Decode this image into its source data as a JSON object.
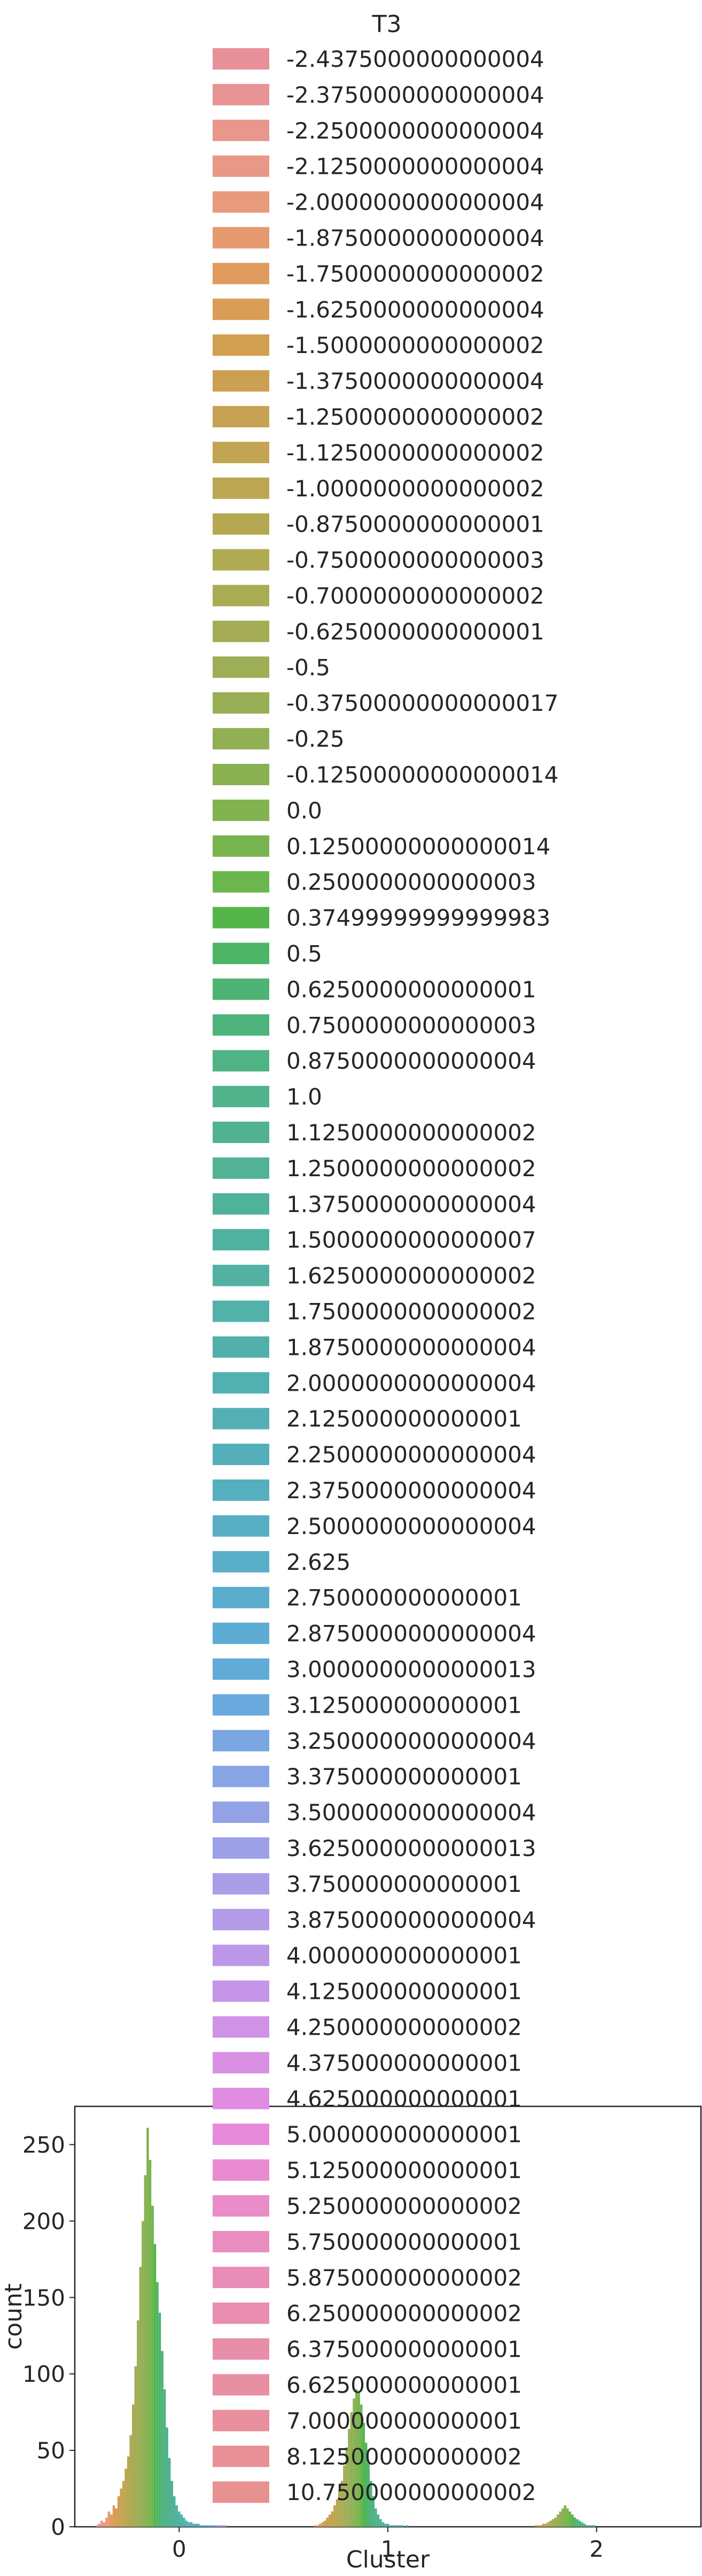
{
  "chart_data": {
    "type": "bar",
    "xlabel": "Cluster",
    "ylabel": "count",
    "xticks": [
      "0",
      "1",
      "2"
    ],
    "yticks": [
      0,
      50,
      100,
      150,
      200,
      250
    ],
    "ylim": [
      0,
      275
    ],
    "xlim": [
      -0.5,
      2.5
    ],
    "grid": false,
    "legend": {
      "title": "T3",
      "placement": "top, overlapping plot",
      "entries": [
        {
          "label": "-2.4375000000000004",
          "color": "#e8909a"
        },
        {
          "label": "-2.3750000000000004",
          "color": "#e89495"
        },
        {
          "label": "-2.2500000000000004",
          "color": "#e9968d"
        },
        {
          "label": "-2.1250000000000004",
          "color": "#e89886"
        },
        {
          "label": "-2.0000000000000004",
          "color": "#e79a7c"
        },
        {
          "label": "-1.8750000000000004",
          "color": "#e49a6e"
        },
        {
          "label": "-1.7500000000000002",
          "color": "#df9c5e"
        },
        {
          "label": "-1.6250000000000004",
          "color": "#d99d56"
        },
        {
          "label": "-1.5000000000000002",
          "color": "#d29e52"
        },
        {
          "label": "-1.3750000000000004",
          "color": "#cca052"
        },
        {
          "label": "-1.2500000000000002",
          "color": "#c7a252"
        },
        {
          "label": "-1.1250000000000002",
          "color": "#c2a452"
        },
        {
          "label": "-1.0000000000000002",
          "color": "#bca652"
        },
        {
          "label": "-0.8750000000000001",
          "color": "#b6a852"
        },
        {
          "label": "-0.7500000000000003",
          "color": "#b0aa53"
        },
        {
          "label": "-0.7000000000000002",
          "color": "#aaac54"
        },
        {
          "label": "-0.6250000000000001",
          "color": "#a4ad55"
        },
        {
          "label": "-0.5",
          "color": "#9eae56"
        },
        {
          "label": "-0.37500000000000017",
          "color": "#98af55"
        },
        {
          "label": "-0.25",
          "color": "#91b054"
        },
        {
          "label": "-0.12500000000000014",
          "color": "#8ab152"
        },
        {
          "label": "0.0",
          "color": "#82b34f"
        },
        {
          "label": "0.12500000000000014",
          "color": "#78b44e"
        },
        {
          "label": "0.2500000000000003",
          "color": "#6bb64d"
        },
        {
          "label": "0.37499999999999983",
          "color": "#55b54a"
        },
        {
          "label": "0.5",
          "color": "#4db565"
        },
        {
          "label": "0.6250000000000001",
          "color": "#4eb473"
        },
        {
          "label": "0.7500000000000003",
          "color": "#4fb37c"
        },
        {
          "label": "0.8750000000000004",
          "color": "#4fb384"
        },
        {
          "label": "1.0",
          "color": "#50b38b"
        },
        {
          "label": "1.1250000000000002",
          "color": "#50b290"
        },
        {
          "label": "1.2500000000000002",
          "color": "#51b295"
        },
        {
          "label": "1.3750000000000004",
          "color": "#51b29a"
        },
        {
          "label": "1.5000000000000007",
          "color": "#51b19f"
        },
        {
          "label": "1.6250000000000002",
          "color": "#52b1a3"
        },
        {
          "label": "1.7500000000000002",
          "color": "#52b1a8"
        },
        {
          "label": "1.8750000000000004",
          "color": "#52b0ac"
        },
        {
          "label": "2.0000000000000004",
          "color": "#53b0b1"
        },
        {
          "label": "2.125000000000001",
          "color": "#54afb5"
        },
        {
          "label": "2.2500000000000004",
          "color": "#55afba"
        },
        {
          "label": "2.3750000000000004",
          "color": "#56afbf"
        },
        {
          "label": "2.5000000000000004",
          "color": "#57aec3"
        },
        {
          "label": "2.625",
          "color": "#59aec8"
        },
        {
          "label": "2.750000000000001",
          "color": "#5badcd"
        },
        {
          "label": "2.8750000000000004",
          "color": "#5dacd3"
        },
        {
          "label": "3.0000000000000013",
          "color": "#61abd9"
        },
        {
          "label": "3.125000000000001",
          "color": "#6ba9df"
        },
        {
          "label": "3.2500000000000004",
          "color": "#7aa6e2"
        },
        {
          "label": "3.375000000000001",
          "color": "#87a4e4"
        },
        {
          "label": "3.5000000000000004",
          "color": "#93a2e6"
        },
        {
          "label": "3.6250000000000013",
          "color": "#9ea0e7"
        },
        {
          "label": "3.750000000000001",
          "color": "#a99ee8"
        },
        {
          "label": "3.8750000000000004",
          "color": "#b39be8"
        },
        {
          "label": "4.000000000000001",
          "color": "#bd98e8"
        },
        {
          "label": "4.125000000000001",
          "color": "#c695e7"
        },
        {
          "label": "4.250000000000002",
          "color": "#cf92e6"
        },
        {
          "label": "4.375000000000001",
          "color": "#d88fe4"
        },
        {
          "label": "4.625000000000001",
          "color": "#e08ce1"
        },
        {
          "label": "5.000000000000001",
          "color": "#e68ad9"
        },
        {
          "label": "5.125000000000001",
          "color": "#e98bd0"
        },
        {
          "label": "5.250000000000002",
          "color": "#e98cc7"
        },
        {
          "label": "5.750000000000001",
          "color": "#e98dbf"
        },
        {
          "label": "5.875000000000002",
          "color": "#e98db7"
        },
        {
          "label": "6.250000000000002",
          "color": "#e98eb0"
        },
        {
          "label": "6.375000000000001",
          "color": "#e98ea9"
        },
        {
          "label": "6.625000000000001",
          "color": "#e98fa3"
        },
        {
          "label": "7.000000000000001",
          "color": "#e98f9d"
        },
        {
          "label": "8.125000000000002",
          "color": "#e99097"
        },
        {
          "label": "10.750000000000002",
          "color": "#e89191"
        }
      ]
    },
    "series": [
      {
        "cluster": 0,
        "values": [
          1,
          2,
          4,
          3,
          6,
          10,
          8,
          14,
          12,
          20,
          25,
          30,
          38,
          46,
          60,
          80,
          105,
          135,
          170,
          200,
          230,
          261,
          240,
          210,
          185,
          160,
          140,
          115,
          90,
          65,
          45,
          30,
          20,
          14,
          10,
          8,
          6,
          4,
          3,
          3,
          2,
          2,
          2,
          1,
          1,
          1,
          1,
          1,
          1,
          1,
          1,
          1,
          1,
          1,
          0,
          0,
          0,
          0,
          0,
          0,
          0,
          0,
          0,
          0,
          0,
          0,
          0,
          0,
          0
        ]
      },
      {
        "cluster": 1,
        "values": [
          0,
          0,
          0,
          0,
          1,
          1,
          2,
          3,
          4,
          6,
          8,
          10,
          14,
          18,
          24,
          30,
          40,
          52,
          64,
          75,
          84,
          90,
          88,
          80,
          68,
          55,
          42,
          30,
          20,
          12,
          8,
          5,
          3,
          2,
          2,
          1,
          1,
          1,
          1,
          1,
          1,
          0,
          1,
          0,
          0,
          0,
          0,
          0,
          0,
          0,
          0,
          0,
          0,
          0,
          0,
          0,
          0,
          0,
          0,
          0,
          0,
          0,
          0,
          0,
          0,
          0,
          0,
          0,
          0
        ]
      },
      {
        "cluster": 2,
        "values": [
          0,
          0,
          0,
          0,
          0,
          0,
          0,
          0,
          0,
          1,
          1,
          1,
          2,
          2,
          3,
          4,
          5,
          6,
          8,
          10,
          12,
          14,
          12,
          10,
          8,
          6,
          5,
          4,
          3,
          2,
          1,
          1,
          1,
          1,
          0,
          0,
          0,
          0,
          0,
          0,
          0,
          0,
          0,
          0,
          0,
          0,
          0,
          0,
          0,
          0,
          0,
          0,
          0,
          0,
          0,
          0,
          0,
          0,
          0,
          0,
          0,
          0,
          0,
          0,
          0,
          0,
          0,
          0,
          0
        ]
      }
    ]
  }
}
